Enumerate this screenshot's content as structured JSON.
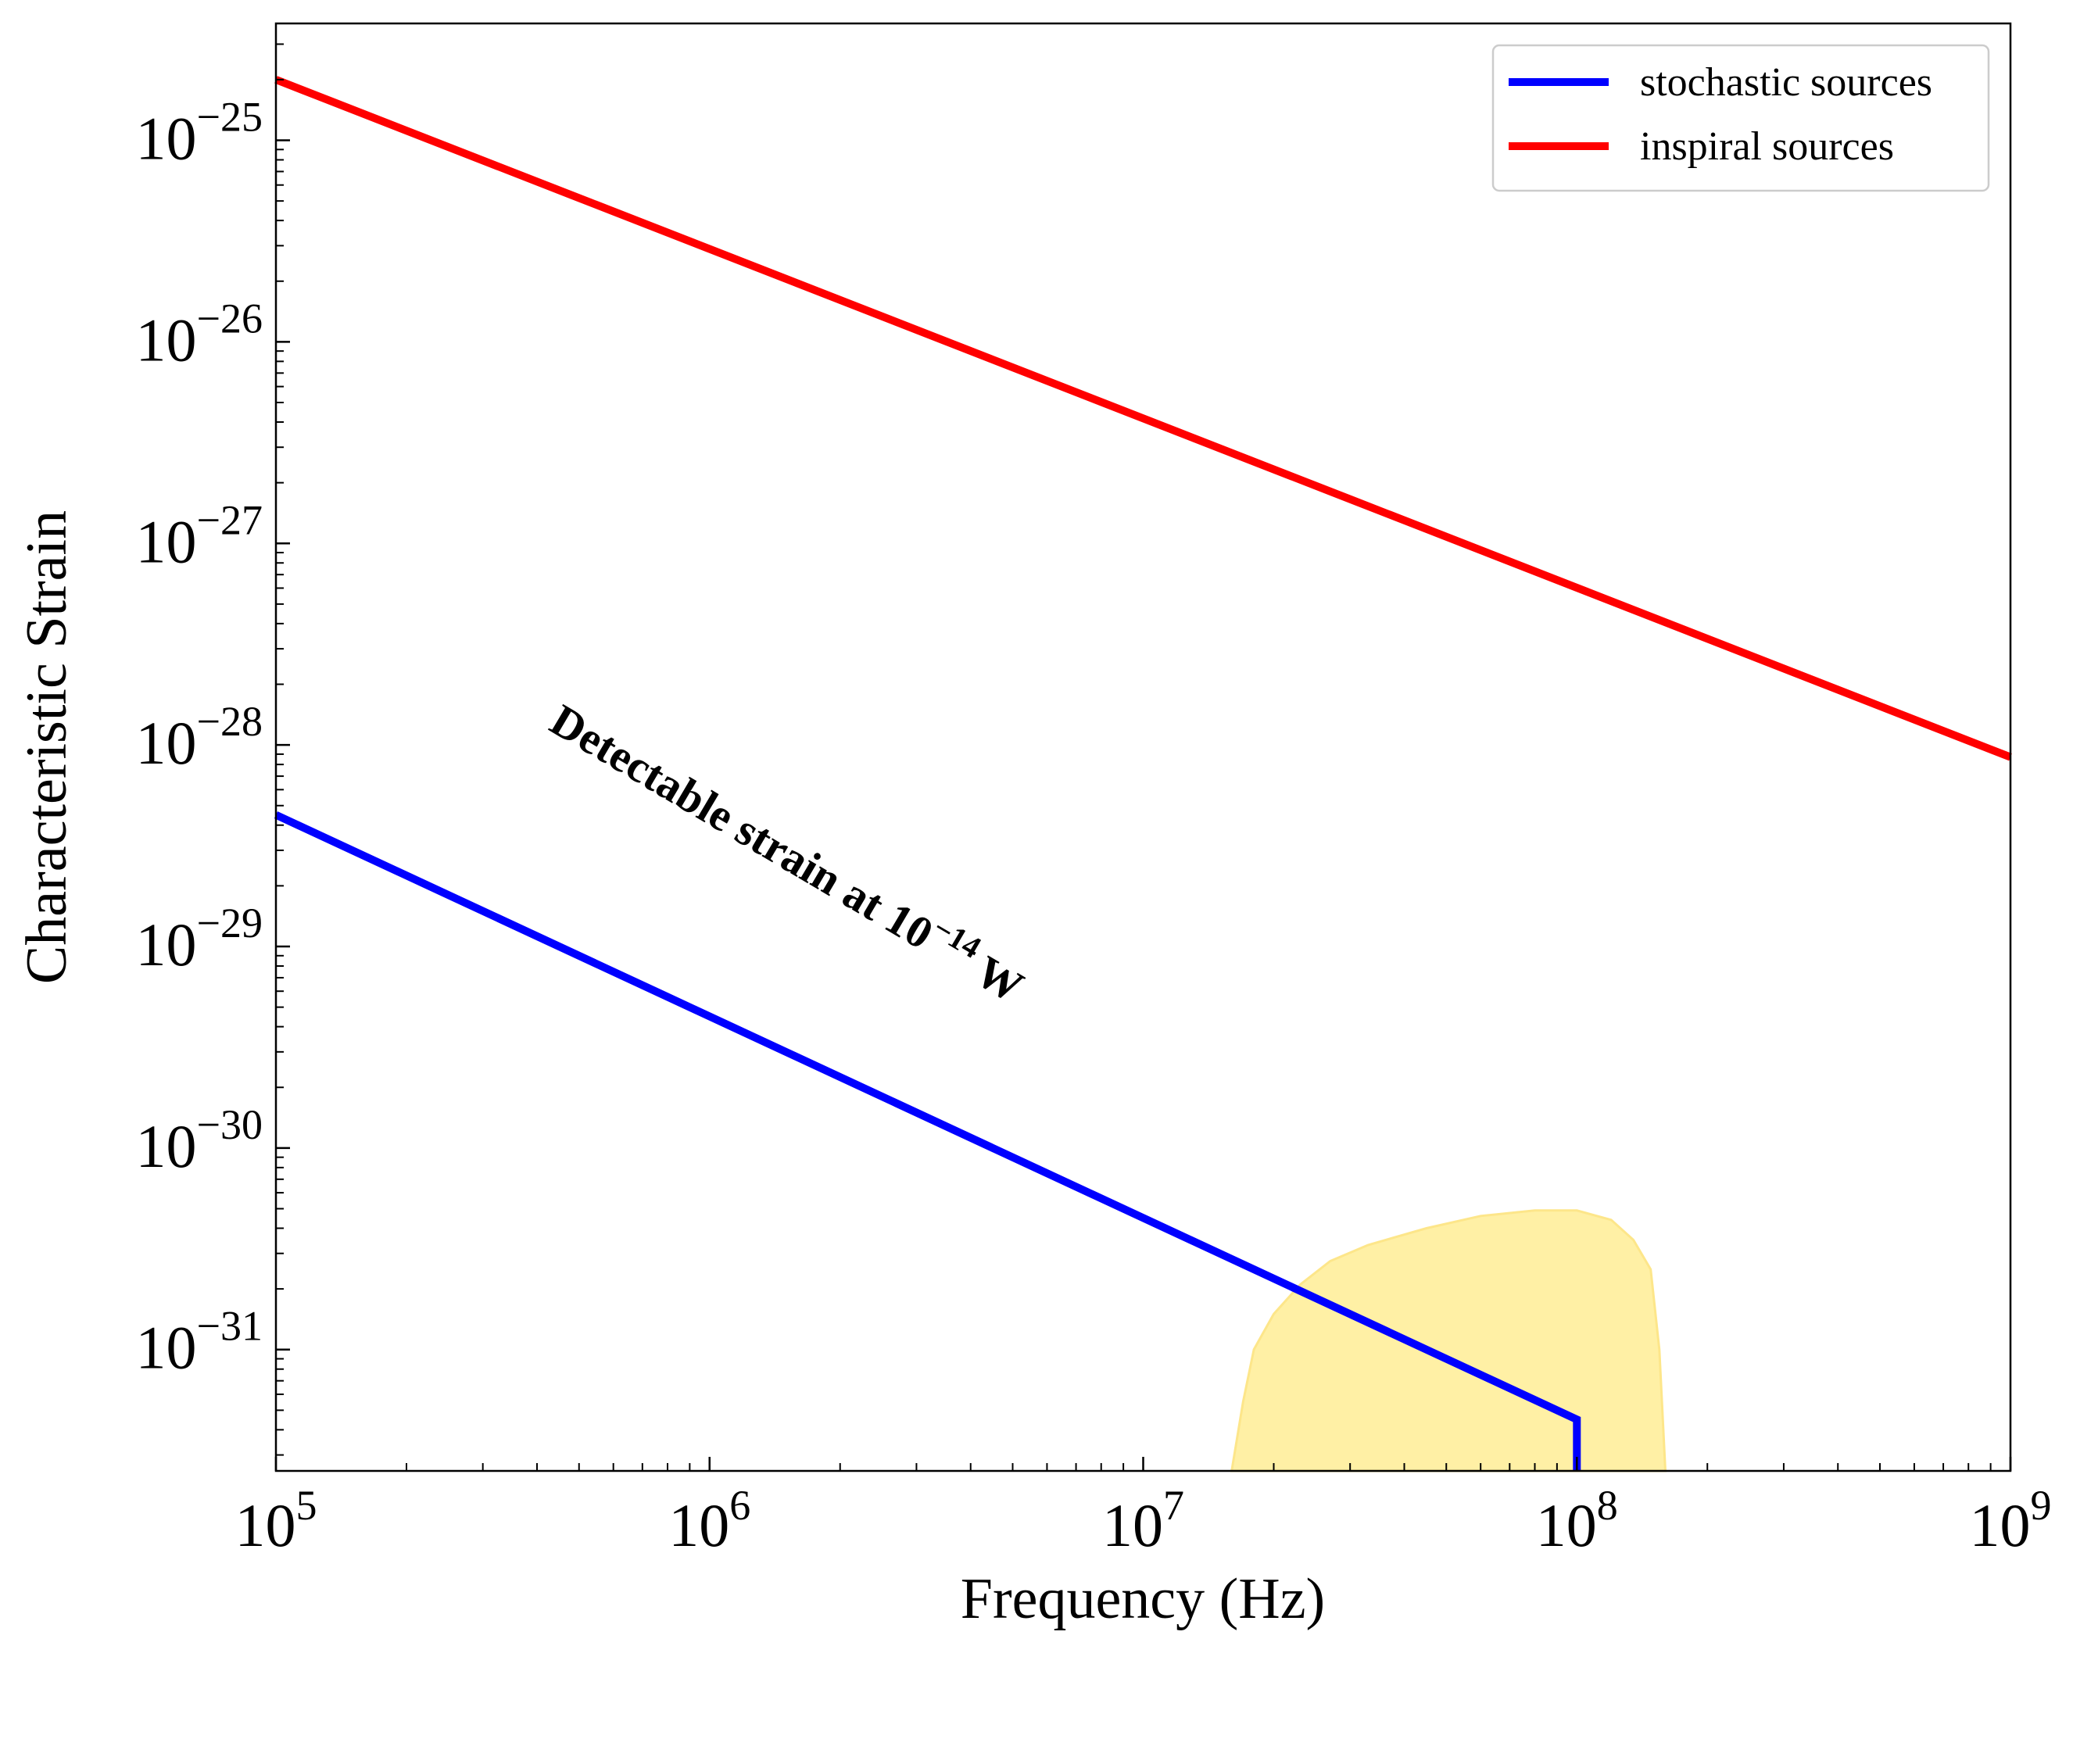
{
  "chart_data": {
    "type": "line",
    "xlabel": "Frequency (Hz)",
    "ylabel": "Characteristic Strain",
    "xscale": "log",
    "yscale": "log",
    "xlim": [
      100000,
      1000000000
    ],
    "ylim": [
      2.5e-32,
      3.8e-25
    ],
    "grid": false,
    "legend_position": "top-right",
    "x_ticks": [
      {
        "value": 100000,
        "base": "10",
        "exp": "5"
      },
      {
        "value": 1000000,
        "base": "10",
        "exp": "6"
      },
      {
        "value": 10000000,
        "base": "10",
        "exp": "7"
      },
      {
        "value": 100000000,
        "base": "10",
        "exp": "8"
      },
      {
        "value": 1000000000,
        "base": "10",
        "exp": "9"
      }
    ],
    "y_ticks": [
      {
        "value": 1e-25,
        "base": "10",
        "exp": "−25"
      },
      {
        "value": 1e-26,
        "base": "10",
        "exp": "−26"
      },
      {
        "value": 1e-27,
        "base": "10",
        "exp": "−27"
      },
      {
        "value": 1e-28,
        "base": "10",
        "exp": "−28"
      },
      {
        "value": 1e-29,
        "base": "10",
        "exp": "−29"
      },
      {
        "value": 1e-30,
        "base": "10",
        "exp": "−30"
      },
      {
        "value": 1e-31,
        "base": "10",
        "exp": "−31"
      }
    ],
    "series": [
      {
        "name": "stochastic sources",
        "color": "#0000ff",
        "points": [
          [
            100000,
            4.5e-29
          ],
          [
            100000000,
            4.5e-32
          ],
          [
            100000000,
            2.5e-32
          ]
        ]
      },
      {
        "name": "inspiral sources",
        "color": "#ff0000",
        "points": [
          [
            100000,
            2e-25
          ],
          [
            1000000000,
            8.7e-29
          ]
        ]
      }
    ],
    "region": {
      "color": "#fff0a5",
      "edge_color": "#fde68a",
      "points": [
        [
          16000000,
          2.5e-32
        ],
        [
          17000000,
          5.5e-32
        ],
        [
          18000000,
          1e-31
        ],
        [
          20000000,
          1.5e-31
        ],
        [
          23000000,
          2.1e-31
        ],
        [
          27000000,
          2.75e-31
        ],
        [
          33000000,
          3.3e-31
        ],
        [
          45000000,
          4e-31
        ],
        [
          60000000,
          4.6e-31
        ],
        [
          80000000,
          4.9e-31
        ],
        [
          100000000,
          4.9e-31
        ],
        [
          120000000,
          4.4e-31
        ],
        [
          135000000,
          3.5e-31
        ],
        [
          148000000,
          2.5e-31
        ],
        [
          155000000,
          1e-31
        ],
        [
          160000000,
          2.5e-32
        ]
      ]
    },
    "annotation": {
      "text": "Detectable strain at 10",
      "exp": "−14",
      "unit": " W"
    }
  }
}
